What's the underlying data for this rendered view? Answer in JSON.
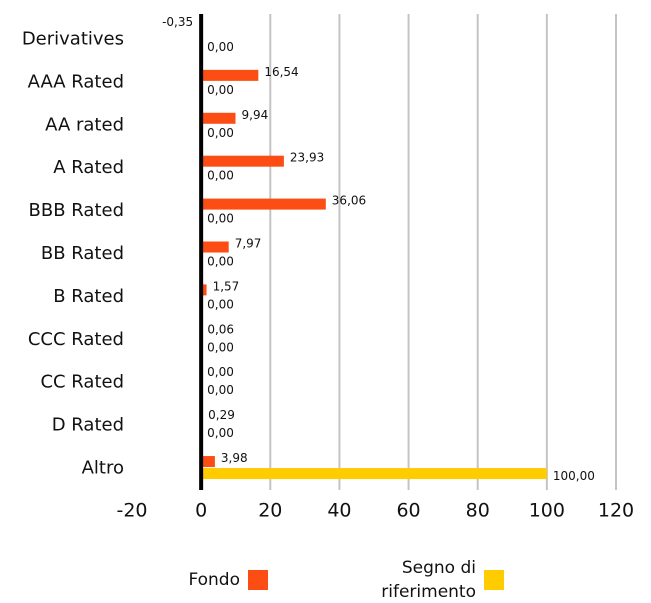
{
  "chart_data": {
    "type": "barh",
    "categories": [
      "Derivatives",
      "AAA Rated",
      "AA rated",
      "A Rated",
      "BBB Rated",
      "BB Rated",
      "B Rated",
      "CCC Rated",
      "CC Rated",
      "D Rated",
      "Altro"
    ],
    "series": [
      {
        "name": "Fondo",
        "color": "#fc4d14",
        "values": [
          -0.35,
          16.54,
          9.94,
          23.93,
          36.06,
          7.97,
          1.57,
          0.06,
          0.0,
          0.29,
          3.98
        ],
        "value_labels": [
          "-0,35",
          "16,54",
          "9,94",
          "23,93",
          "36,06",
          "7,97",
          "1,57",
          "0,06",
          "0,00",
          "0,29",
          "3,98"
        ]
      },
      {
        "name": "Segno di riferimento",
        "color": "#ffcc00",
        "values": [
          0.0,
          0.0,
          0.0,
          0.0,
          0.0,
          0.0,
          0.0,
          0.0,
          0.0,
          0.0,
          100.0
        ],
        "value_labels": [
          "0,00",
          "0,00",
          "0,00",
          "0,00",
          "0,00",
          "0,00",
          "0,00",
          "0,00",
          "0,00",
          "0,00",
          "100,00"
        ]
      }
    ],
    "xlim": [
      -20,
      120
    ],
    "xticks": [
      -20,
      0,
      20,
      40,
      60,
      80,
      100,
      120
    ],
    "grid": true,
    "legend": "bottom"
  }
}
